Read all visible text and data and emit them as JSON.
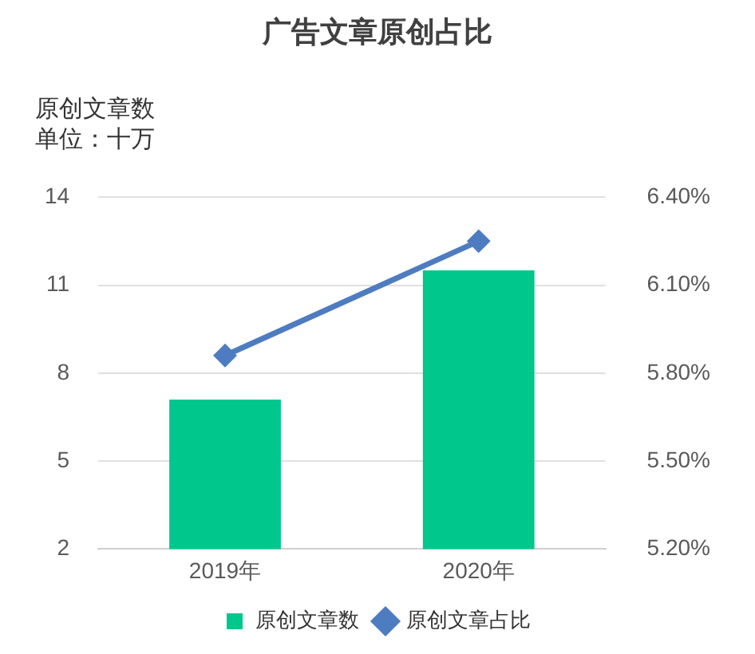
{
  "chart_data": {
    "type": "bar",
    "title": "广告文章原创占比",
    "ylabel": "原创文章数",
    "annotations": [
      "单位：十万"
    ],
    "categories": [
      "2019年",
      "2020年"
    ],
    "series": [
      {
        "name": "原创文章数",
        "color": "#00c78c",
        "values": [
          7.1,
          11.5
        ]
      },
      {
        "name": "原创文章占比",
        "type": "line",
        "axis": "y2",
        "color": "#4e7cc0",
        "values": [
          5.86,
          6.25
        ]
      }
    ],
    "ylim": [
      2,
      14
    ],
    "yticks": [
      2,
      5,
      8,
      11,
      14
    ],
    "y2lim": [
      5.2,
      6.4
    ],
    "y2ticks": [
      {
        "value": 5.2,
        "label": "5.20%"
      },
      {
        "value": 5.5,
        "label": "5.50%"
      },
      {
        "value": 5.8,
        "label": "5.80%"
      },
      {
        "value": 6.1,
        "label": "6.10%"
      },
      {
        "value": 6.4,
        "label": "6.40%"
      }
    ],
    "grid": "y",
    "legend": "bottom",
    "marker": "diamond",
    "line_style": "solid"
  }
}
